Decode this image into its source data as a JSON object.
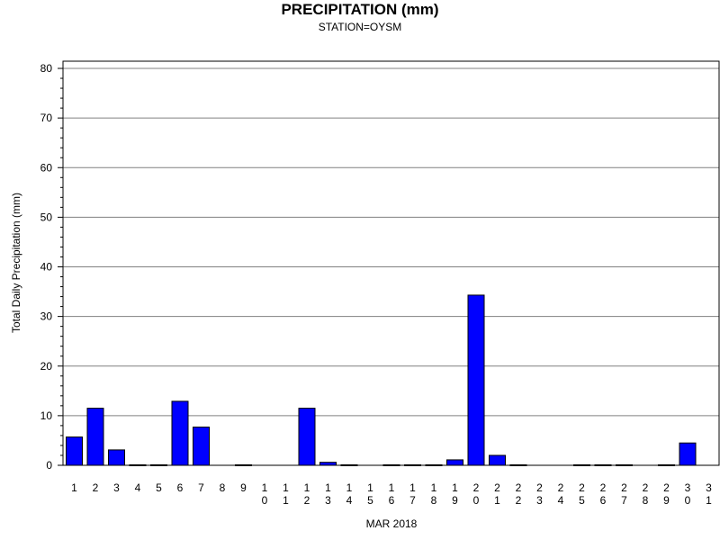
{
  "chart_data": {
    "type": "bar",
    "title": "PRECIPITATION (mm)",
    "subtitle": "STATION=OYSM",
    "ylabel": "Total Daily Precipitation (mm)",
    "xlabel": "MAR 2018",
    "ylim": [
      0,
      80
    ],
    "yticks": [
      0,
      10,
      20,
      30,
      40,
      50,
      60,
      70,
      80
    ],
    "grid": true,
    "categories": [
      "1",
      "2",
      "3",
      "4",
      "5",
      "6",
      "7",
      "8",
      "9",
      "10",
      "11",
      "12",
      "13",
      "14",
      "15",
      "16",
      "17",
      "18",
      "19",
      "20",
      "21",
      "22",
      "23",
      "24",
      "25",
      "26",
      "27",
      "28",
      "29",
      "30",
      "31"
    ],
    "values": [
      5.7,
      11.5,
      3.1,
      0.1,
      0.1,
      12.9,
      7.7,
      null,
      0.1,
      null,
      null,
      11.5,
      0.6,
      0.1,
      null,
      0.1,
      0.1,
      0.1,
      1.1,
      34.3,
      2.0,
      0.1,
      null,
      null,
      0.1,
      0.1,
      0.1,
      null,
      0.1,
      4.5,
      null
    ],
    "bar_color": "#0000ff"
  }
}
